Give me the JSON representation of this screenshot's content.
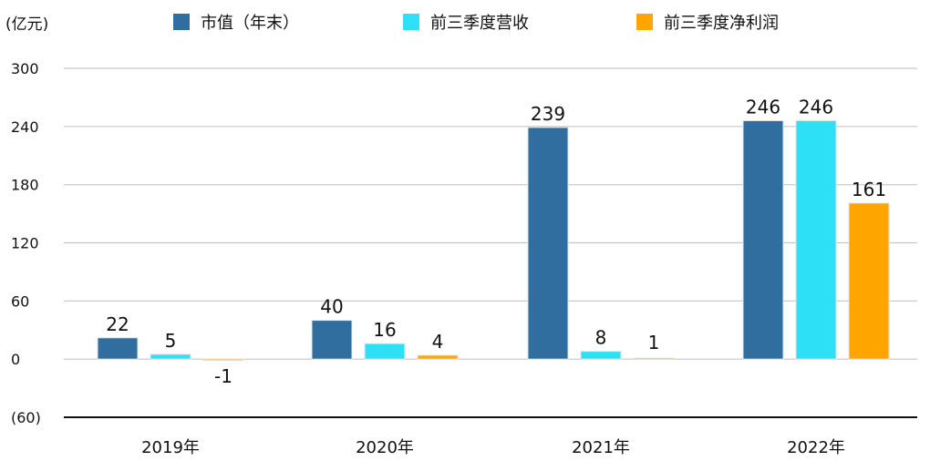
{
  "chart_data": {
    "type": "bar",
    "unit_label": "(亿元)",
    "categories": [
      "2019年",
      "2020年",
      "2021年",
      "2022年"
    ],
    "series": [
      {
        "name": "市值（年末）",
        "color": "#2F6E9E",
        "values": [
          22,
          40,
          239,
          246
        ],
        "labels": [
          "22",
          "40",
          "239",
          "246"
        ]
      },
      {
        "name": "前三季度营收",
        "color": "#2EE0F5",
        "values": [
          5,
          16,
          8,
          246
        ],
        "labels": [
          "5",
          "16",
          "8",
          "246"
        ]
      },
      {
        "name": "前三季度净利润",
        "color": "#FFA500",
        "values": [
          -1,
          4,
          1,
          161
        ],
        "labels": [
          "-1",
          "4",
          "1",
          "161"
        ]
      }
    ],
    "ylim": [
      -60,
      300
    ],
    "yticks": [
      300,
      240,
      180,
      120,
      60,
      0,
      -60
    ],
    "ytick_labels": [
      "300",
      "240",
      "180",
      "120",
      "60",
      "0",
      "(60)"
    ],
    "grid": true,
    "legend_position": "top"
  }
}
